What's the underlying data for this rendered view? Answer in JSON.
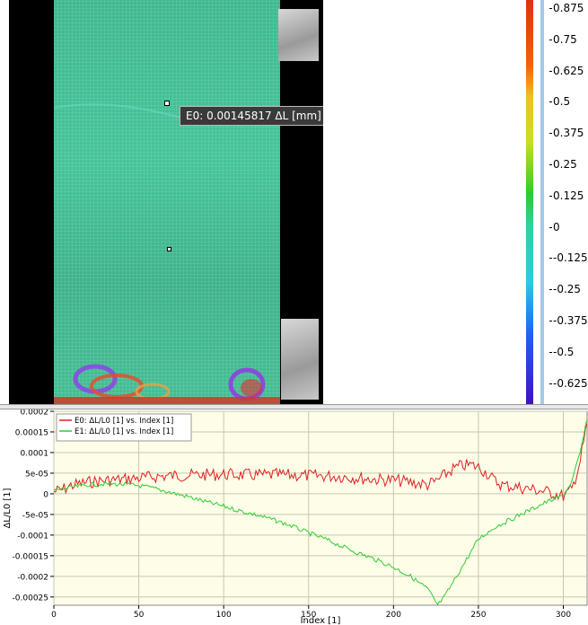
{
  "tooltip": {
    "text": "E0: 0.00145817 ΔL [mm]"
  },
  "colorbar": {
    "labels": [
      "0.875",
      "0.75",
      "0.625",
      "0.5",
      "0.375",
      "0.25",
      "0.125",
      "0",
      "-0.125",
      "-0.25",
      "-0.375",
      "-0.5",
      "-0.625"
    ]
  },
  "chart_data": {
    "type": "line",
    "xlabel": "Index [1]",
    "ylabel": "ΔL/L0 [1]",
    "xlim": [
      0,
      314
    ],
    "ylim": [
      -0.00027,
      0.0002
    ],
    "xticks": [
      0,
      50,
      100,
      150,
      200,
      250,
      300
    ],
    "xtick_labels": [
      "0",
      "50",
      "100",
      "150",
      "200",
      "250",
      "300"
    ],
    "yticks": [
      0.0002,
      0.00015,
      0.0001,
      5e-05,
      0,
      -5e-05,
      -0.0001,
      -0.00015,
      -0.0002,
      -0.00025
    ],
    "ytick_labels": [
      "0.0002",
      "0.00015",
      "0.0001",
      "5e-05",
      "0",
      "-5e-05",
      "-0.0001",
      "-0.00015",
      "-0.0002",
      "-0.00025"
    ],
    "grid": true,
    "legend_position": "top-left",
    "series": [
      {
        "name": "E0: ΔL/L0 [1] vs. Index [1]",
        "color": "#e02020",
        "x": [
          0,
          5,
          10,
          20,
          30,
          40,
          50,
          60,
          70,
          80,
          90,
          100,
          110,
          120,
          130,
          140,
          150,
          160,
          170,
          180,
          190,
          200,
          210,
          215,
          220,
          225,
          230,
          235,
          240,
          245,
          250,
          255,
          260,
          265,
          270,
          280,
          290,
          295,
          300,
          305,
          310,
          314
        ],
        "y": [
          5e-06,
          1e-05,
          2e-05,
          2.8e-05,
          3.2e-05,
          3.5e-05,
          3.8e-05,
          4.2e-05,
          4.4e-05,
          4.5e-05,
          4.6e-05,
          4.7e-05,
          4.6e-05,
          4.5e-05,
          4.6e-05,
          4.5e-05,
          4.4e-05,
          4.3e-05,
          4.2e-05,
          3.8e-05,
          3.5e-05,
          3.3e-05,
          2.8e-05,
          2.5e-05,
          2.2e-05,
          3e-05,
          4.5e-05,
          6e-05,
          6.8e-05,
          7e-05,
          6.5e-05,
          5e-05,
          3e-05,
          2e-05,
          1.8e-05,
          1.2e-05,
          5e-06,
          0.0,
          -5e-06,
          1e-05,
          8e-05,
          0.00017
        ]
      },
      {
        "name": "E1: ΔL/L0 [1] vs. Index [1]",
        "color": "#30cc30",
        "x": [
          0,
          10,
          20,
          30,
          40,
          50,
          60,
          70,
          80,
          90,
          100,
          110,
          120,
          130,
          140,
          150,
          160,
          170,
          180,
          190,
          200,
          210,
          220,
          226,
          230,
          240,
          250,
          260,
          270,
          280,
          290,
          300,
          305,
          310,
          314
        ],
        "y": [
          8e-06,
          1.5e-05,
          2.2e-05,
          2.4e-05,
          2.3e-05,
          2e-05,
          1.2e-05,
          2e-06,
          -8e-06,
          -2e-05,
          -3e-05,
          -4.2e-05,
          -5.2e-05,
          -6.4e-05,
          -7.8e-05,
          -9.5e-05,
          -0.00011,
          -0.000128,
          -0.000145,
          -0.00016,
          -0.000178,
          -0.0002,
          -0.00023,
          -0.00027,
          -0.00025,
          -0.00018,
          -0.00011,
          -8e-05,
          -6e-05,
          -4e-05,
          -2e-05,
          -5e-06,
          3e-05,
          0.0001,
          0.00018
        ]
      }
    ]
  }
}
